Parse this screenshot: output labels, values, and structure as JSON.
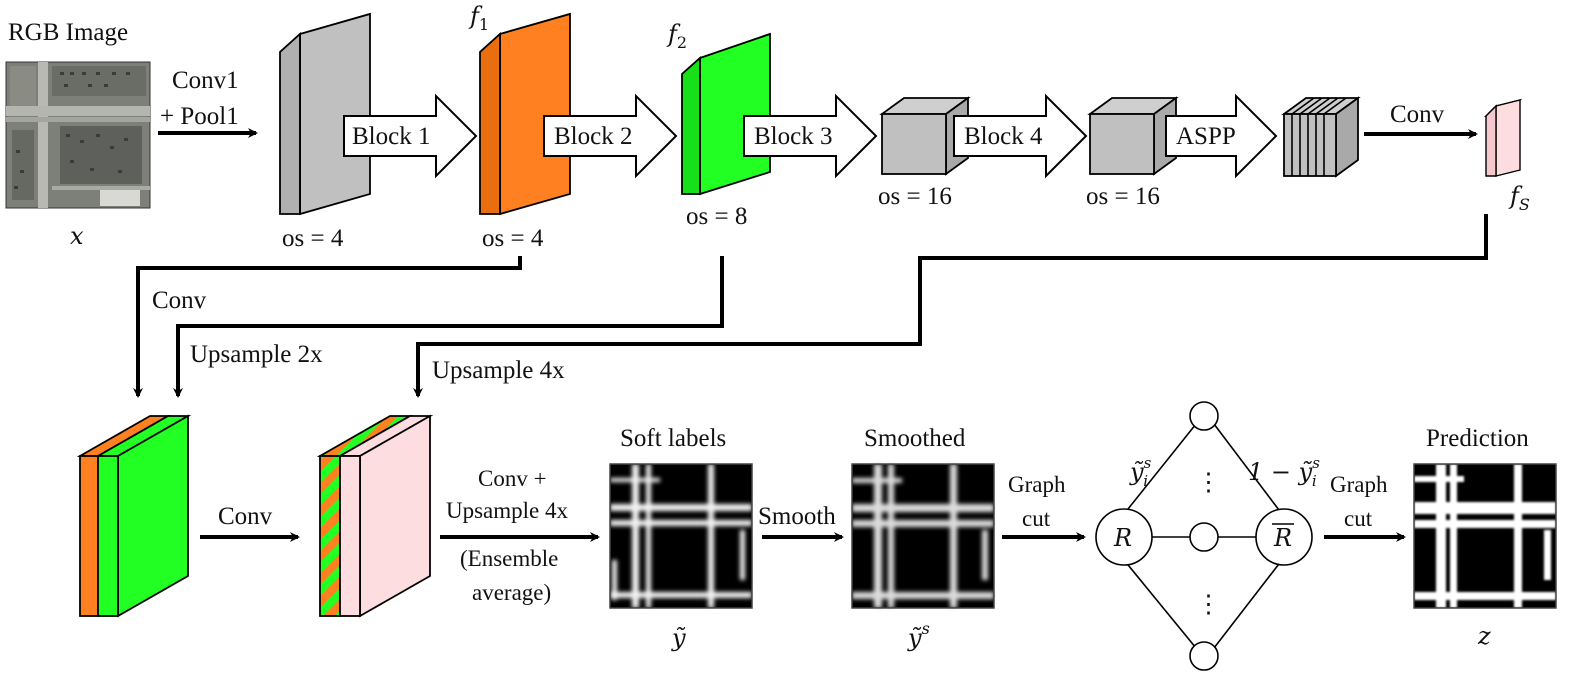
{
  "input": {
    "title": "RGB Image",
    "var": "x"
  },
  "arrows": {
    "conv1_line1": "Conv1",
    "conv1_line2": "+ Pool1",
    "block1": "Block 1",
    "block2": "Block 2",
    "block3": "Block 3",
    "block4": "Block 4",
    "aspp": "ASPP",
    "conv_top": "Conv",
    "conv_mid": "Conv",
    "conv_up_line1": "Conv +",
    "conv_up_line2": "Upsample 4x",
    "conv_up_line3": "(Ensemble",
    "conv_up_line4": "average)",
    "smooth": "Smooth",
    "graphcut1_line1": "Graph",
    "graphcut1_line2": "cut",
    "graphcut2_line1": "Graph",
    "graphcut2_line2": "cut"
  },
  "features": {
    "os_a": "os = 4",
    "os_b": "os = 4",
    "os_c": "os = 8",
    "os_d": "os = 16",
    "os_e": "os = 16",
    "f1": "f",
    "f1_sub": "1",
    "f2": "f",
    "f2_sub": "2",
    "fs": "f",
    "fs_sub": "S"
  },
  "connectors": {
    "conv": "Conv",
    "upsample2": "Upsample 2x",
    "upsample4": "Upsample 4x"
  },
  "outputs": {
    "soft_title": "Soft labels",
    "soft_var": "ỹ",
    "smoothed_title": "Smoothed",
    "smoothed_var": "ỹ",
    "smoothed_sup": "s",
    "pred_title": "Prediction",
    "pred_var": "z"
  },
  "graph": {
    "node_r": "R",
    "node_rbar": "R",
    "left_label": "ỹ",
    "left_sup": "s",
    "left_sub": "i",
    "right_prefix": "1 − ỹ",
    "right_sup": "s",
    "right_sub": "i",
    "dots": "⋮"
  },
  "colors": {
    "gray": "#c0c0c0",
    "orange": "#ff8020",
    "green": "#22ff22",
    "pink": "#fddde0"
  }
}
